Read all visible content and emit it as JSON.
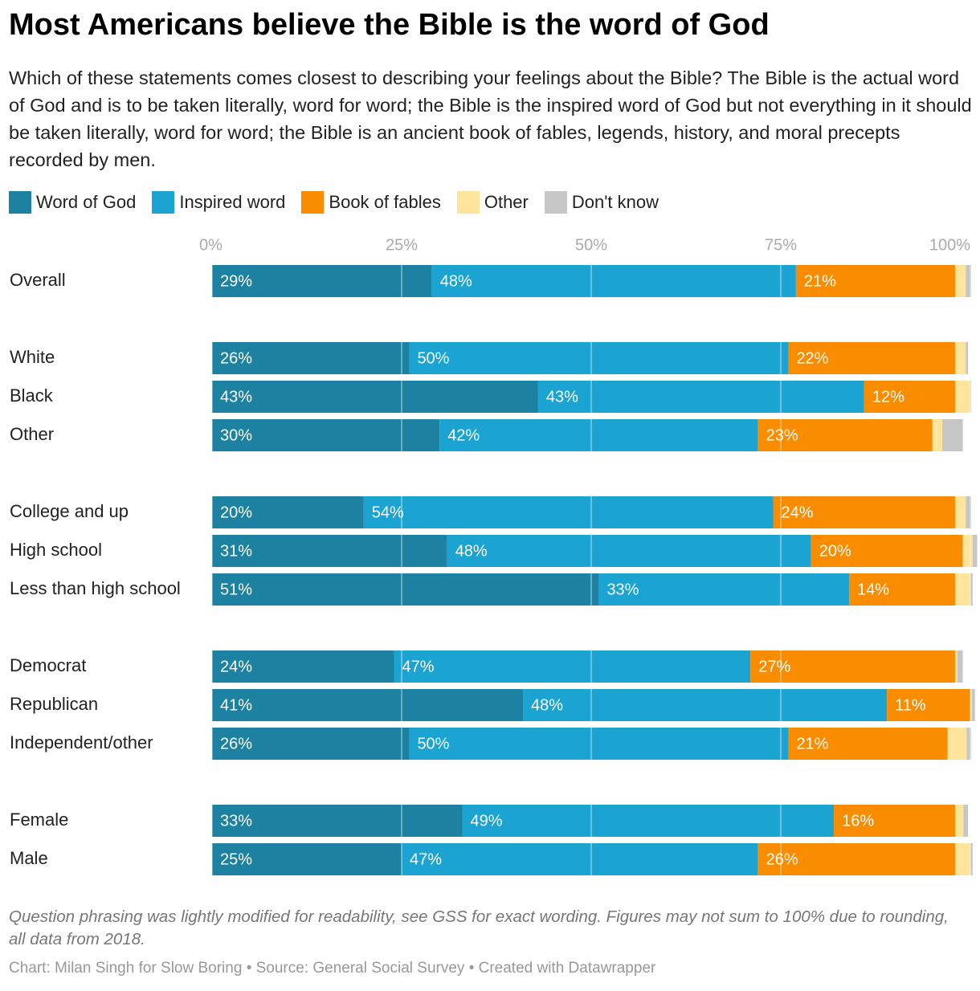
{
  "chart_data": {
    "type": "stacked-bar-horizontal",
    "title": "Most Americans believe the Bible is the word of God",
    "subtitle": "Which of these statements comes closest to describing your feelings about the Bible? The Bible is the actual word of God and is to be taken literally, word for word; the Bible is the inspired word of God but not everything in it should be taken literally, word for word; the Bible is an ancient book of fables, legends, history, and moral precepts recorded by men.",
    "notes": "Question phrasing was lightly modified for readability, see GSS for exact wording. Figures may not sum to 100% due to rounding, all data from 2018.",
    "source": "Chart: Milan Singh for Slow Boring • Source: General Social Survey • Created with Datawrapper",
    "categories": [
      "Overall",
      "White",
      "Black",
      "Other",
      "College and up",
      "High school",
      "Less than high school",
      "Democrat",
      "Republican",
      "Independent/other",
      "Female",
      "Male"
    ],
    "series": [
      {
        "name": "Word of God",
        "color": "#1d81a2",
        "values": [
          29,
          26,
          43,
          30,
          20,
          31,
          51,
          24,
          41,
          26,
          33,
          25
        ],
        "value_labels": [
          "29%",
          "26%",
          "43%",
          "30%",
          "20%",
          "31%",
          "51%",
          "24%",
          "41%",
          "26%",
          "33%",
          "25%"
        ]
      },
      {
        "name": "Inspired word",
        "color": "#1ba3d1",
        "values": [
          48,
          50,
          43,
          42,
          54,
          48,
          33,
          47,
          48,
          50,
          49,
          47
        ],
        "value_labels": [
          "48%",
          "50%",
          "43%",
          "42%",
          "54%",
          "48%",
          "33%",
          "47%",
          "48%",
          "50%",
          "49%",
          "47%"
        ]
      },
      {
        "name": "Book of fables",
        "color": "#fa8c00",
        "values": [
          21,
          22,
          12,
          23,
          24,
          20,
          14,
          27,
          11,
          21,
          16,
          26
        ],
        "value_labels": [
          "21%",
          "22%",
          "12%",
          "23%",
          "24%",
          "20%",
          "14%",
          "27%",
          "11%",
          "21%",
          "16%",
          "26%"
        ]
      },
      {
        "name": "Other",
        "color": "#ffe49c",
        "values": [
          1.4,
          1.4,
          2,
          1.3,
          1.4,
          1.3,
          2,
          0.3,
          0.2,
          2.5,
          1.1,
          2
        ]
      },
      {
        "name": "Don't know",
        "color": "#c6c6c6",
        "values": [
          0.7,
          0.3,
          0.1,
          2.7,
          0.7,
          0.6,
          0.3,
          0.7,
          0.4,
          0.6,
          0.6,
          0.3
        ]
      }
    ],
    "xlim": [
      0,
      100
    ],
    "xticks": [
      {
        "value": 0,
        "label": "0%"
      },
      {
        "value": 25,
        "label": "25%"
      },
      {
        "value": 50,
        "label": "50%"
      },
      {
        "value": 75,
        "label": "75%"
      },
      {
        "value": 100,
        "label": "100%"
      }
    ],
    "grid": true
  }
}
